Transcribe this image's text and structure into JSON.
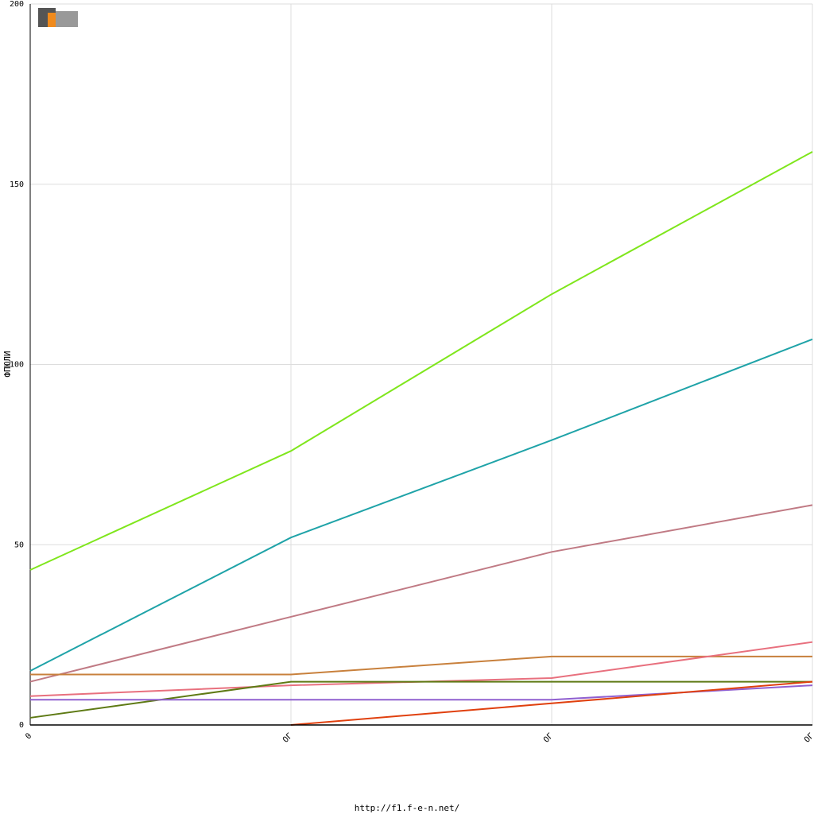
{
  "chart_data": {
    "type": "line",
    "y_label": "ФПЮЛИ",
    "footer": "http://f1.f-e-n.net/",
    "categories": [
      "0",
      "ОГ",
      "ОГ",
      "ОГ"
    ],
    "series": [
      {
        "color": "#7fe61c",
        "values": [
          43,
          76,
          119.5,
          159
        ]
      },
      {
        "color": "#1fa3a8",
        "values": [
          15,
          52,
          79,
          107
        ]
      },
      {
        "color": "#c07a84",
        "values": [
          12,
          30,
          48,
          61
        ]
      },
      {
        "color": "#c8803c",
        "values": [
          14,
          14,
          19,
          19
        ]
      },
      {
        "color": "#e8707e",
        "values": [
          8,
          11,
          13,
          23
        ]
      },
      {
        "color": "#5e7a14",
        "values": [
          2,
          12,
          12,
          12
        ]
      },
      {
        "color": "#9060d0",
        "values": [
          7,
          7,
          7,
          11
        ]
      },
      {
        "color": "#e0400e",
        "values": [
          null,
          0,
          6,
          12
        ]
      }
    ],
    "ylim": [
      0,
      200
    ],
    "yticks": [
      0,
      50,
      100,
      150,
      200
    ],
    "grid": true
  }
}
